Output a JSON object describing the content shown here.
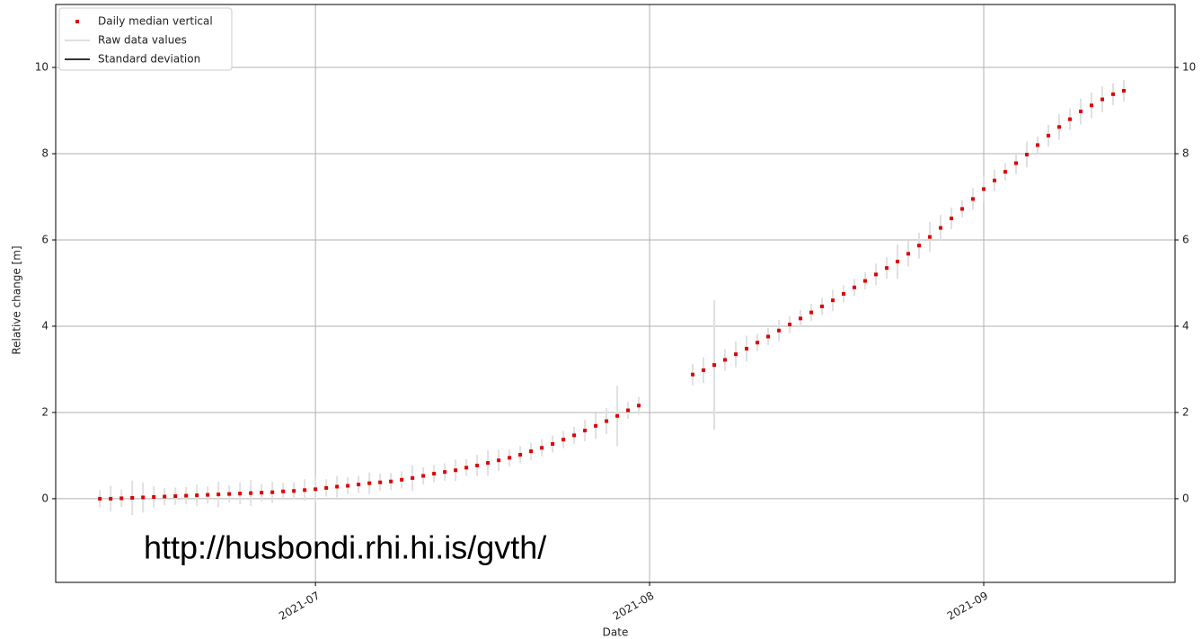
{
  "chart_data": {
    "type": "scatter",
    "xlabel": "Date",
    "ylabel": "Relative change [m]",
    "annotation": "http://husbondi.rhi.hi.is/gvth/",
    "xlim": [
      156.9,
      260.75
    ],
    "ylim": [
      -1.94,
      11.46
    ],
    "xticks": [
      {
        "value": 181,
        "label": "2021-07"
      },
      {
        "value": 212,
        "label": "2021-08"
      },
      {
        "value": 243,
        "label": "2021-09"
      }
    ],
    "yticks": [
      0,
      2,
      4,
      6,
      8,
      10
    ],
    "grid": true,
    "legend": "upper left",
    "series": [
      {
        "name": "Daily median vertical",
        "color": "#e00000",
        "x": [
          161,
          162,
          163,
          164,
          165,
          166,
          167,
          168,
          169,
          170,
          171,
          172,
          173,
          174,
          175,
          176,
          177,
          178,
          179,
          180,
          181,
          182,
          183,
          184,
          185,
          186,
          187,
          188,
          189,
          190,
          191,
          192,
          193,
          194,
          195,
          196,
          197,
          198,
          199,
          200,
          201,
          202,
          203,
          204,
          205,
          206,
          207,
          208,
          209,
          210,
          211,
          216,
          217,
          218,
          219,
          220,
          221,
          222,
          223,
          224,
          225,
          226,
          227,
          228,
          229,
          230,
          231,
          232,
          233,
          234,
          235,
          236,
          237,
          238,
          239,
          240,
          241,
          242,
          243,
          244,
          245,
          246,
          247,
          248,
          249,
          250,
          251,
          252,
          253,
          254,
          255,
          256
        ],
        "values": [
          0.0,
          0.0,
          0.01,
          0.02,
          0.03,
          0.04,
          0.05,
          0.06,
          0.07,
          0.08,
          0.09,
          0.1,
          0.11,
          0.12,
          0.13,
          0.14,
          0.15,
          0.17,
          0.18,
          0.2,
          0.22,
          0.25,
          0.28,
          0.3,
          0.33,
          0.36,
          0.38,
          0.4,
          0.44,
          0.48,
          0.53,
          0.58,
          0.62,
          0.66,
          0.72,
          0.77,
          0.83,
          0.89,
          0.95,
          1.02,
          1.1,
          1.18,
          1.27,
          1.37,
          1.47,
          1.58,
          1.69,
          1.8,
          1.92,
          2.05,
          2.16,
          2.88,
          2.98,
          3.1,
          3.22,
          3.35,
          3.48,
          3.62,
          3.76,
          3.9,
          4.04,
          4.18,
          4.32,
          4.46,
          4.6,
          4.75,
          4.9,
          5.05,
          5.2,
          5.35,
          5.5,
          5.68,
          5.87,
          6.07,
          6.28,
          6.5,
          6.72,
          6.95,
          7.18,
          7.38,
          7.58,
          7.78,
          7.98,
          8.2,
          8.42,
          8.62,
          8.8,
          8.98,
          9.12,
          9.26,
          9.38,
          9.46
        ]
      },
      {
        "name": "Raw data values",
        "color": "#e0e0e0",
        "values": [
          0.2,
          0.3,
          0.2,
          0.4,
          0.35,
          0.25,
          0.2,
          0.2,
          0.2,
          0.25,
          0.2,
          0.3,
          0.2,
          0.25,
          0.3,
          0.2,
          0.25,
          0.2,
          0.2,
          0.25,
          0.3,
          0.2,
          0.25,
          0.2,
          0.2,
          0.25,
          0.2,
          0.2,
          0.2,
          0.3,
          0.2,
          0.2,
          0.2,
          0.25,
          0.2,
          0.25,
          0.3,
          0.25,
          0.2,
          0.2,
          0.2,
          0.2,
          0.2,
          0.2,
          0.2,
          0.25,
          0.3,
          0.3,
          0.7,
          0.2,
          0.2,
          0.25,
          0.3,
          1.5,
          0.25,
          0.3,
          0.3,
          0.2,
          0.2,
          0.25,
          0.2,
          0.2,
          0.2,
          0.2,
          0.25,
          0.2,
          0.2,
          0.2,
          0.25,
          0.25,
          0.4,
          0.3,
          0.3,
          0.35,
          0.3,
          0.25,
          0.2,
          0.25,
          0.3,
          0.25,
          0.2,
          0.25,
          0.3,
          0.2,
          0.25,
          0.3,
          0.25,
          0.3,
          0.3,
          0.3,
          0.25,
          0.25
        ]
      },
      {
        "name": "Standard deviation",
        "color": "#333333"
      }
    ]
  }
}
